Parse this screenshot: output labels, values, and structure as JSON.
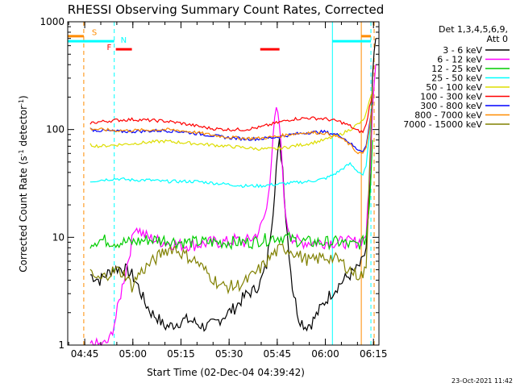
{
  "chart_data": {
    "type": "line",
    "title": "RHESSI Observing Summary Count Rates, Corrected",
    "xlabel": "Start Time (02-Dec-04 04:39:42)",
    "ylabel_main": "Corrected Count Rate (s",
    "ylabel_sup1": "-1",
    "ylabel_mid": " detector",
    "ylabel_sup2": "-1",
    "ylabel_end": ")",
    "x_unit": "minutes since 04:39:42",
    "x_range": [
      0,
      97
    ],
    "y_scale": "log",
    "ylim": [
      1,
      1000
    ],
    "x_ticks": [
      {
        "value": 5.3,
        "label": "04:45"
      },
      {
        "value": 20.3,
        "label": "05:00"
      },
      {
        "value": 35.3,
        "label": "05:15"
      },
      {
        "value": 50.3,
        "label": "05:30"
      },
      {
        "value": 65.3,
        "label": "05:45"
      },
      {
        "value": 80.3,
        "label": "06:00"
      },
      {
        "value": 95.3,
        "label": "06:15"
      }
    ],
    "y_ticks": [
      {
        "value": 1,
        "label": "1"
      },
      {
        "value": 10,
        "label": "10"
      },
      {
        "value": 100,
        "label": "100"
      },
      {
        "value": 1000,
        "label": "1000"
      }
    ],
    "legend_header_1": "Det 1,3,4,5,6,9,",
    "legend_header_2": "Att 0",
    "legend_position": "right",
    "series": [
      {
        "name": "3 - 6 keV",
        "color": "#000000",
        "x": [
          7,
          10,
          12,
          14,
          16,
          18,
          20,
          22,
          24,
          26,
          28,
          30,
          32,
          34,
          36,
          38,
          40,
          42,
          44,
          46,
          48,
          50,
          52,
          54,
          56,
          58,
          60,
          62,
          64,
          65,
          66,
          67,
          68,
          70,
          72,
          74,
          76,
          78,
          80,
          82,
          84,
          86,
          88,
          90,
          92,
          93,
          94,
          95,
          96
        ],
        "y": [
          4.5,
          4.0,
          4.5,
          5.0,
          5.2,
          5.0,
          4.5,
          3.5,
          2.5,
          2.0,
          1.8,
          1.5,
          1.5,
          1.6,
          1.7,
          1.7,
          1.6,
          1.5,
          1.5,
          1.6,
          1.8,
          2.0,
          2.2,
          2.6,
          3.0,
          3.2,
          3.8,
          5.5,
          18,
          45,
          75,
          45,
          15,
          3.5,
          1.8,
          1.5,
          1.6,
          2.0,
          2.5,
          3.0,
          3.5,
          4.0,
          4.5,
          5.0,
          6.0,
          8.0,
          20,
          300,
          700
        ]
      },
      {
        "name": "6 - 12 keV",
        "color": "#ff00ff",
        "x": [
          7,
          9,
          11,
          13,
          15,
          17,
          19,
          21,
          23,
          25,
          27,
          30,
          35,
          40,
          45,
          48,
          50,
          52,
          55,
          58,
          60,
          62,
          63,
          64,
          65,
          66,
          67,
          68,
          70,
          72,
          75,
          80,
          85,
          88,
          90,
          92,
          93,
          94,
          95,
          96
        ],
        "y": [
          1.0,
          1.0,
          1.0,
          1.1,
          1.8,
          3.5,
          6.5,
          13,
          11,
          10,
          9.5,
          9,
          8.5,
          8.5,
          9,
          9,
          9,
          9.5,
          9,
          10,
          12,
          18,
          35,
          90,
          150,
          110,
          40,
          14,
          10,
          9,
          9,
          9,
          9,
          9,
          9,
          9.5,
          11,
          30,
          150,
          400
        ]
      },
      {
        "name": "12 - 25 keV",
        "color": "#00cc00",
        "x": [
          7,
          10,
          15,
          20,
          25,
          30,
          35,
          40,
          45,
          50,
          55,
          58,
          60,
          62,
          64,
          66,
          68,
          70,
          75,
          80,
          85,
          88,
          90,
          92,
          93,
          94,
          95
        ],
        "y": [
          9,
          9.5,
          9,
          9,
          9.5,
          9.5,
          9,
          9,
          9,
          9,
          9,
          9,
          9.5,
          9.5,
          10,
          10,
          10,
          9.5,
          9,
          9,
          9,
          8.5,
          8.5,
          9,
          10,
          20,
          80
        ]
      },
      {
        "name": "25 - 50 keV",
        "color": "#00ffff",
        "x": [
          7,
          10,
          15,
          20,
          25,
          30,
          35,
          40,
          45,
          50,
          55,
          60,
          65,
          70,
          75,
          78,
          80,
          82,
          84,
          86,
          88,
          90,
          92,
          93,
          94,
          95
        ],
        "y": [
          33,
          34,
          35,
          34,
          34,
          33,
          33,
          33,
          32,
          31,
          30,
          30,
          31,
          32,
          33,
          34,
          35,
          37,
          40,
          44,
          48,
          42,
          38,
          45,
          90,
          180
        ]
      },
      {
        "name": "50 - 100 keV",
        "color": "#dddd00",
        "x": [
          7,
          10,
          15,
          20,
          25,
          30,
          35,
          40,
          45,
          50,
          55,
          60,
          65,
          70,
          75,
          80,
          85,
          88,
          90,
          92,
          93,
          94,
          95
        ],
        "y": [
          72,
          70,
          72,
          74,
          76,
          78,
          76,
          74,
          72,
          70,
          68,
          66,
          66,
          70,
          74,
          80,
          90,
          100,
          110,
          120,
          140,
          180,
          220
        ]
      },
      {
        "name": "100 - 300 keV",
        "color": "#ff0000",
        "x": [
          7,
          10,
          15,
          20,
          25,
          30,
          35,
          40,
          45,
          50,
          55,
          60,
          65,
          70,
          75,
          80,
          85,
          88,
          90,
          92,
          93,
          94,
          95
        ],
        "y": [
          115,
          118,
          122,
          124,
          122,
          120,
          115,
          108,
          102,
          100,
          100,
          105,
          115,
          125,
          128,
          126,
          118,
          108,
          98,
          95,
          110,
          160,
          220
        ]
      },
      {
        "name": "300 - 800 keV",
        "color": "#0000ff",
        "x": [
          7,
          10,
          15,
          20,
          25,
          30,
          35,
          40,
          45,
          50,
          55,
          60,
          65,
          70,
          75,
          80,
          85,
          88,
          90,
          92,
          93,
          94,
          95
        ],
        "y": [
          100,
          98,
          96,
          96,
          97,
          98,
          96,
          92,
          88,
          84,
          82,
          82,
          85,
          90,
          94,
          95,
          88,
          75,
          66,
          64,
          70,
          110,
          180
        ]
      },
      {
        "name": "800 - 7000 keV",
        "color": "#ff8c00",
        "x": [
          7,
          10,
          15,
          20,
          25,
          30,
          35,
          40,
          45,
          50,
          55,
          60,
          65,
          70,
          75,
          80,
          85,
          88,
          90,
          92,
          93,
          94,
          95
        ],
        "y": [
          102,
          100,
          98,
          98,
          99,
          100,
          98,
          94,
          89,
          85,
          83,
          83,
          86,
          91,
          94,
          93,
          84,
          72,
          62,
          60,
          66,
          105,
          170
        ]
      },
      {
        "name": "7000 - 15000 keV",
        "color": "#808000",
        "x": [
          7,
          10,
          12,
          15,
          18,
          20,
          22,
          25,
          28,
          30,
          33,
          36,
          40,
          44,
          48,
          52,
          55,
          58,
          61,
          64,
          67,
          70,
          73,
          76,
          79,
          82,
          85,
          88,
          90,
          92,
          93,
          94,
          95
        ],
        "y": [
          4.5,
          4.0,
          4.5,
          5.0,
          4.5,
          3.5,
          4.5,
          5.5,
          6.5,
          7.5,
          8.0,
          7.0,
          6.0,
          4.5,
          3.5,
          3.5,
          3.8,
          4.5,
          5.5,
          7.0,
          8.0,
          7.5,
          6.5,
          6.0,
          6.5,
          6.5,
          6.0,
          5.0,
          4.5,
          4.5,
          5.0,
          40,
          250
        ]
      }
    ],
    "annotations": [
      {
        "text": "S",
        "color": "#ff8c00",
        "x": 7.5,
        "y": 750
      },
      {
        "text": "N",
        "color": "#00ffff",
        "x": 16.5,
        "y": 640
      },
      {
        "text": "F",
        "color": "#ff0000",
        "x": 12.2,
        "y": 545
      }
    ],
    "state_bars": [
      {
        "name": "saa",
        "color": "#ff8c00",
        "level": 735,
        "segments": [
          [
            0,
            5
          ],
          [
            91.5,
            94.5
          ]
        ]
      },
      {
        "name": "night",
        "color": "#00ffff",
        "level": 660,
        "segments": [
          [
            0,
            14.5
          ],
          [
            82.5,
            94.5
          ]
        ]
      },
      {
        "name": "flare",
        "color": "#ff0000",
        "level": 555,
        "segments": [
          [
            15,
            20
          ],
          [
            60,
            66
          ]
        ]
      }
    ],
    "vertical_markers": [
      {
        "x": 5,
        "color": "#ff8c00",
        "style": "dashed"
      },
      {
        "x": 14.5,
        "color": "#00ffff",
        "style": "dashed"
      },
      {
        "x": 82.5,
        "color": "#00ffff",
        "style": "solid"
      },
      {
        "x": 91.5,
        "color": "#ff8c00",
        "style": "solid"
      },
      {
        "x": 94.5,
        "color": "#00ffff",
        "style": "dashed"
      },
      {
        "x": 95.5,
        "color": "#ff8c00",
        "style": "dashed"
      }
    ],
    "timestamp": "23-Oct-2021 11:42"
  }
}
